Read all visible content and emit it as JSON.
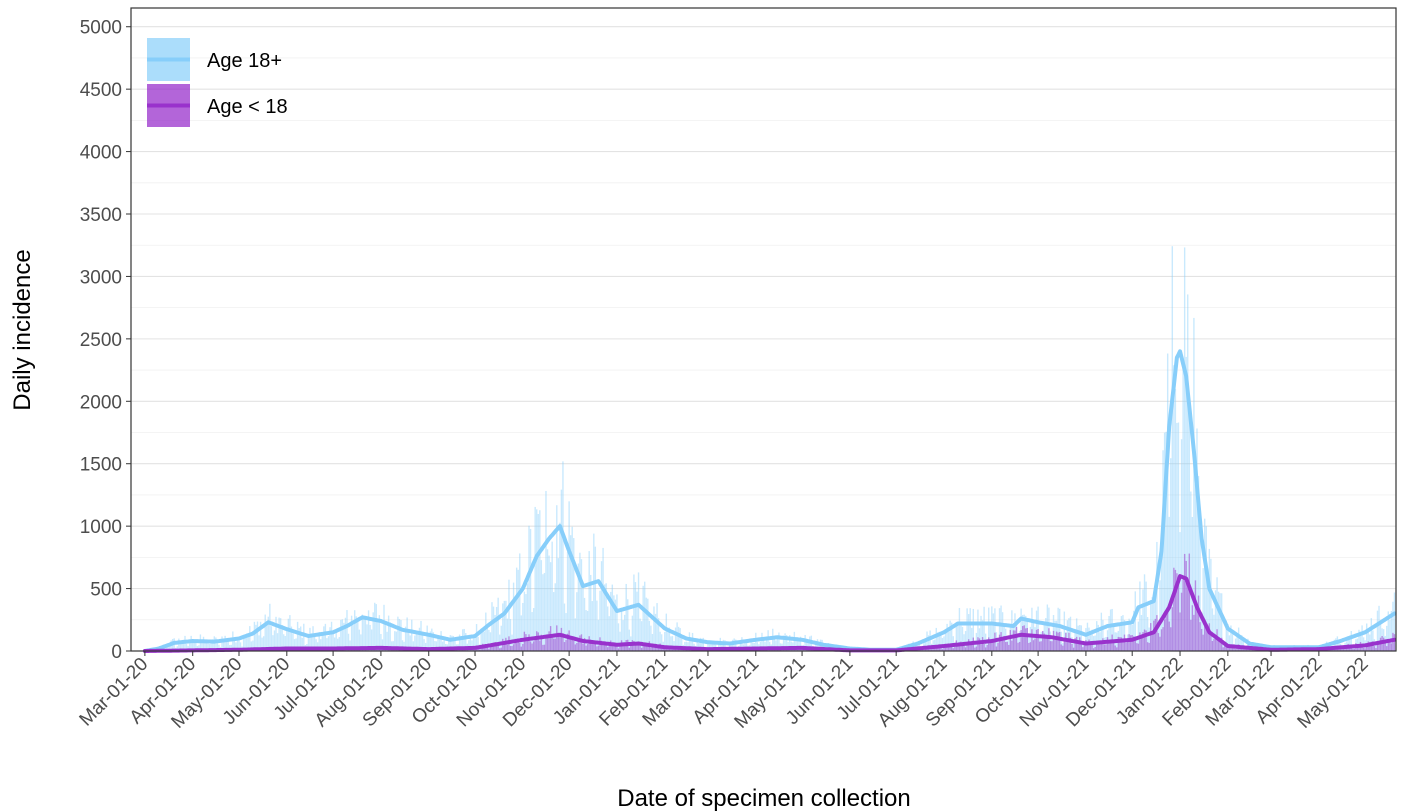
{
  "chart_data": {
    "type": "bar+line",
    "title": "",
    "xlabel": "Date of specimen collection",
    "ylabel": "Daily incidence",
    "x_range": [
      "2020-03-01",
      "2022-05-20"
    ],
    "ylim": [
      0,
      5000
    ],
    "y_ticks": [
      0,
      500,
      1000,
      1500,
      2000,
      2500,
      3000,
      3500,
      4000,
      4500,
      5000
    ],
    "x_ticks": [
      {
        "date": "2020-03-01",
        "label": "Mar-01-20"
      },
      {
        "date": "2020-04-01",
        "label": "Apr-01-20"
      },
      {
        "date": "2020-05-01",
        "label": "May-01-20"
      },
      {
        "date": "2020-06-01",
        "label": "Jun-01-20"
      },
      {
        "date": "2020-07-01",
        "label": "Jul-01-20"
      },
      {
        "date": "2020-08-01",
        "label": "Aug-01-20"
      },
      {
        "date": "2020-09-01",
        "label": "Sep-01-20"
      },
      {
        "date": "2020-10-01",
        "label": "Oct-01-20"
      },
      {
        "date": "2020-11-01",
        "label": "Nov-01-20"
      },
      {
        "date": "2020-12-01",
        "label": "Dec-01-20"
      },
      {
        "date": "2021-01-01",
        "label": "Jan-01-21"
      },
      {
        "date": "2021-02-01",
        "label": "Feb-01-21"
      },
      {
        "date": "2021-03-01",
        "label": "Mar-01-21"
      },
      {
        "date": "2021-04-01",
        "label": "Apr-01-21"
      },
      {
        "date": "2021-05-01",
        "label": "May-01-21"
      },
      {
        "date": "2021-06-01",
        "label": "Jun-01-21"
      },
      {
        "date": "2021-07-01",
        "label": "Jul-01-21"
      },
      {
        "date": "2021-08-01",
        "label": "Aug-01-21"
      },
      {
        "date": "2021-09-01",
        "label": "Sep-01-21"
      },
      {
        "date": "2021-10-01",
        "label": "Oct-01-21"
      },
      {
        "date": "2021-11-01",
        "label": "Nov-01-21"
      },
      {
        "date": "2021-12-01",
        "label": "Dec-01-21"
      },
      {
        "date": "2022-01-01",
        "label": "Jan-01-22"
      },
      {
        "date": "2022-02-01",
        "label": "Feb-01-22"
      },
      {
        "date": "2022-03-01",
        "label": "Mar-01-22"
      },
      {
        "date": "2022-04-01",
        "label": "Apr-01-22"
      },
      {
        "date": "2022-05-01",
        "label": "May-01-22"
      }
    ],
    "grid": true,
    "legend_position": "top-left",
    "series": [
      {
        "name": "Age 18+",
        "color": "#87CEFA",
        "trend": [
          [
            "2020-03-01",
            0
          ],
          [
            "2020-03-10",
            20
          ],
          [
            "2020-03-20",
            65
          ],
          [
            "2020-04-01",
            80
          ],
          [
            "2020-04-15",
            75
          ],
          [
            "2020-05-01",
            100
          ],
          [
            "2020-05-10",
            140
          ],
          [
            "2020-05-20",
            230
          ],
          [
            "2020-06-01",
            175
          ],
          [
            "2020-06-15",
            120
          ],
          [
            "2020-07-01",
            150
          ],
          [
            "2020-07-10",
            200
          ],
          [
            "2020-07-20",
            270
          ],
          [
            "2020-08-01",
            240
          ],
          [
            "2020-08-15",
            170
          ],
          [
            "2020-09-01",
            130
          ],
          [
            "2020-09-15",
            90
          ],
          [
            "2020-10-01",
            120
          ],
          [
            "2020-10-10",
            210
          ],
          [
            "2020-10-20",
            300
          ],
          [
            "2020-11-01",
            500
          ],
          [
            "2020-11-10",
            760
          ],
          [
            "2020-11-18",
            900
          ],
          [
            "2020-11-25",
            1000
          ],
          [
            "2020-12-01",
            800
          ],
          [
            "2020-12-10",
            520
          ],
          [
            "2020-12-20",
            560
          ],
          [
            "2021-01-01",
            320
          ],
          [
            "2021-01-15",
            370
          ],
          [
            "2021-02-01",
            180
          ],
          [
            "2021-02-15",
            100
          ],
          [
            "2021-03-01",
            70
          ],
          [
            "2021-03-15",
            60
          ],
          [
            "2021-04-01",
            90
          ],
          [
            "2021-04-15",
            110
          ],
          [
            "2021-05-01",
            90
          ],
          [
            "2021-05-15",
            50
          ],
          [
            "2021-06-01",
            20
          ],
          [
            "2021-06-15",
            10
          ],
          [
            "2021-07-01",
            10
          ],
          [
            "2021-07-15",
            60
          ],
          [
            "2021-08-01",
            150
          ],
          [
            "2021-08-10",
            220
          ],
          [
            "2021-09-01",
            220
          ],
          [
            "2021-09-15",
            200
          ],
          [
            "2021-09-20",
            260
          ],
          [
            "2021-10-01",
            230
          ],
          [
            "2021-10-15",
            200
          ],
          [
            "2021-11-01",
            130
          ],
          [
            "2021-11-15",
            200
          ],
          [
            "2021-12-01",
            230
          ],
          [
            "2021-12-05",
            350
          ],
          [
            "2021-12-15",
            400
          ],
          [
            "2021-12-20",
            800
          ],
          [
            "2021-12-25",
            1800
          ],
          [
            "2021-12-30",
            2350
          ],
          [
            "2022-01-01",
            2400
          ],
          [
            "2022-01-05",
            2200
          ],
          [
            "2022-01-10",
            1600
          ],
          [
            "2022-01-15",
            900
          ],
          [
            "2022-01-20",
            500
          ],
          [
            "2022-02-01",
            180
          ],
          [
            "2022-02-15",
            60
          ],
          [
            "2022-03-01",
            30
          ],
          [
            "2022-04-01",
            30
          ],
          [
            "2022-04-15",
            80
          ],
          [
            "2022-05-01",
            150
          ],
          [
            "2022-05-20",
            300
          ]
        ]
      },
      {
        "name": "Age < 18",
        "color": "#9932CC",
        "trend": [
          [
            "2020-03-01",
            0
          ],
          [
            "2020-04-01",
            5
          ],
          [
            "2020-05-01",
            10
          ],
          [
            "2020-06-01",
            20
          ],
          [
            "2020-07-01",
            20
          ],
          [
            "2020-08-01",
            25
          ],
          [
            "2020-09-01",
            15
          ],
          [
            "2020-10-01",
            25
          ],
          [
            "2020-11-01",
            90
          ],
          [
            "2020-11-25",
            130
          ],
          [
            "2020-12-10",
            80
          ],
          [
            "2021-01-01",
            50
          ],
          [
            "2021-01-15",
            60
          ],
          [
            "2021-02-01",
            30
          ],
          [
            "2021-03-01",
            15
          ],
          [
            "2021-04-01",
            20
          ],
          [
            "2021-05-01",
            25
          ],
          [
            "2021-06-01",
            5
          ],
          [
            "2021-07-01",
            5
          ],
          [
            "2021-08-01",
            40
          ],
          [
            "2021-09-01",
            80
          ],
          [
            "2021-09-20",
            130
          ],
          [
            "2021-10-10",
            110
          ],
          [
            "2021-11-01",
            60
          ],
          [
            "2021-12-01",
            90
          ],
          [
            "2021-12-15",
            150
          ],
          [
            "2021-12-25",
            350
          ],
          [
            "2022-01-01",
            600
          ],
          [
            "2022-01-05",
            580
          ],
          [
            "2022-01-12",
            350
          ],
          [
            "2022-01-20",
            150
          ],
          [
            "2022-02-01",
            40
          ],
          [
            "2022-03-01",
            10
          ],
          [
            "2022-04-01",
            15
          ],
          [
            "2022-05-01",
            45
          ],
          [
            "2022-05-20",
            90
          ]
        ]
      }
    ]
  }
}
